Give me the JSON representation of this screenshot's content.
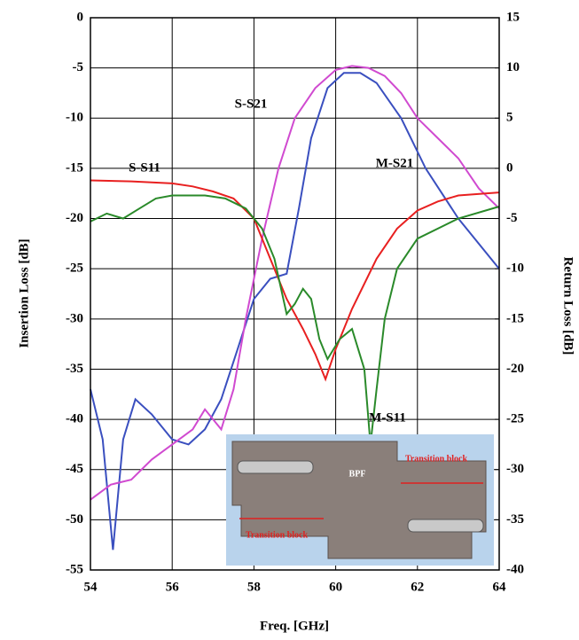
{
  "chart_data": {
    "type": "line",
    "xlabel": "Freq. [GHz]",
    "ylabel": "Insertion Loss [dB]",
    "y2label": "Return Loss [dB]",
    "xlim": [
      54,
      64
    ],
    "xticks": [
      54,
      56,
      58,
      60,
      62,
      64
    ],
    "ylim": [
      -55,
      0
    ],
    "yticks": [
      0,
      -5,
      -10,
      -15,
      -20,
      -25,
      -30,
      -35,
      -40,
      -45,
      -50,
      -55
    ],
    "y2lim": [
      -40,
      15
    ],
    "y2ticks": [
      15,
      10,
      5,
      0,
      -5,
      -10,
      -15,
      -20,
      -25,
      -30,
      -35,
      -40
    ],
    "grid": true,
    "inset_labels": [
      "BPF",
      "Transition block",
      "Transition block"
    ],
    "series": [
      {
        "name": "M-S21",
        "color": "#3a4fbf",
        "x": [
          54,
          54.3,
          54.55,
          54.8,
          55.1,
          55.5,
          56,
          56.4,
          56.8,
          57.2,
          57.6,
          58,
          58.4,
          58.8,
          59.1,
          59.4,
          59.8,
          60.2,
          60.6,
          61,
          61.6,
          62.2,
          63,
          64
        ],
        "values": [
          -37,
          -42,
          -53,
          -42,
          -38,
          -39.5,
          -42,
          -42.5,
          -41,
          -38,
          -33,
          -28,
          -26,
          -25.5,
          -19,
          -12,
          -7,
          -5.5,
          -5.5,
          -6.5,
          -10,
          -15,
          -20,
          -25
        ]
      },
      {
        "name": "S-S21",
        "color": "#d04ad0",
        "x": [
          54,
          54.5,
          55,
          55.5,
          56,
          56.5,
          56.8,
          57.2,
          57.5,
          57.8,
          58.2,
          58.6,
          59,
          59.5,
          60,
          60.4,
          60.8,
          61.2,
          61.6,
          62,
          62.5,
          63,
          63.5,
          64
        ],
        "values": [
          -48,
          -46.5,
          -46,
          -44,
          -42.5,
          -41,
          -39,
          -41,
          -37,
          -30,
          -22,
          -15,
          -10,
          -7,
          -5.2,
          -4.8,
          -5,
          -5.8,
          -7.5,
          -10,
          -12,
          -14,
          -17,
          -19
        ]
      },
      {
        "name": "S-S11",
        "color": "#e82020",
        "axis": "y2",
        "x": [
          54,
          55,
          56,
          56.5,
          57,
          57.5,
          58,
          58.4,
          58.8,
          59.2,
          59.5,
          59.75,
          60,
          60.4,
          61,
          61.5,
          62,
          62.5,
          63,
          64
        ],
        "values": [
          -1.2,
          -1.3,
          -1.5,
          -1.8,
          -2.3,
          -3,
          -5,
          -9,
          -13,
          -16,
          -18.5,
          -21,
          -18,
          -14,
          -9,
          -6,
          -4.2,
          -3.3,
          -2.7,
          -2.4
        ]
      },
      {
        "name": "M-S11",
        "color": "#2a8a2a",
        "axis": "y2",
        "x": [
          54,
          54.4,
          54.8,
          55.2,
          55.6,
          56,
          56.8,
          57.3,
          57.8,
          58.2,
          58.5,
          58.8,
          59,
          59.2,
          59.4,
          59.6,
          59.8,
          60.1,
          60.4,
          60.7,
          60.85,
          61,
          61.2,
          61.5,
          62,
          63,
          64
        ],
        "values": [
          -5.3,
          -4.5,
          -5,
          -4,
          -3,
          -2.7,
          -2.7,
          -3,
          -4,
          -6,
          -9,
          -14.5,
          -13.5,
          -12,
          -13,
          -17,
          -19,
          -17,
          -16,
          -20,
          -27.5,
          -22,
          -15,
          -10,
          -7,
          -5,
          -3.8
        ]
      }
    ]
  }
}
